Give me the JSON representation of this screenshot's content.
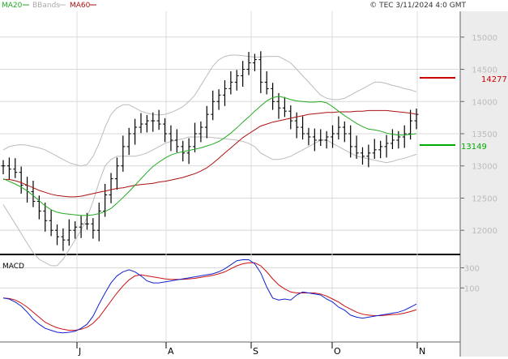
{
  "legend": {
    "ma20": {
      "label": "MA20",
      "color": "#22aa22"
    },
    "bbands": {
      "label": "BBands",
      "color": "#bbbbbb"
    },
    "ma60": {
      "label": "MA60",
      "color": "#aa1111"
    }
  },
  "copyright": "© TEC 3/11/2024 4:0 GMT",
  "macd_label": "MACD",
  "price_marker_high": {
    "value": "14277",
    "color": "#cc0000"
  },
  "price_marker_low": {
    "value": "13149",
    "color": "#00aa00"
  },
  "chart_data": [
    {
      "type": "ohlc",
      "panel": "price",
      "x_tick_labels": [
        "J",
        "A",
        "S",
        "O",
        "N"
      ],
      "y_ticks": [
        12000,
        12500,
        13000,
        13500,
        14000,
        14500,
        15000
      ],
      "y_tick_labels": [
        "12000",
        "12500",
        "13000",
        "13500",
        "14000",
        "14500",
        "15000"
      ],
      "ylim": [
        11650,
        15400
      ],
      "grid": true,
      "series": [
        {
          "name": "MA20",
          "values": [
            12800,
            12760,
            12720,
            12670,
            12610,
            12540,
            12460,
            12380,
            12320,
            12280,
            12260,
            12250,
            12240,
            12230,
            12230,
            12240,
            12260,
            12290,
            12340,
            12420,
            12510,
            12600,
            12700,
            12800,
            12900,
            12990,
            13060,
            13120,
            13170,
            13200,
            13220,
            13240,
            13260,
            13280,
            13310,
            13340,
            13380,
            13440,
            13510,
            13590,
            13680,
            13760,
            13850,
            13930,
            14010,
            14060,
            14080,
            14060,
            14030,
            14010,
            14000,
            13990,
            13990,
            14000,
            13980,
            13920,
            13850,
            13780,
            13720,
            13660,
            13610,
            13570,
            13560,
            13540,
            13510,
            13490,
            13480,
            13480,
            13490,
            13500
          ]
        },
        {
          "name": "MA60",
          "values": [
            12790,
            12790,
            12770,
            12740,
            12700,
            12660,
            12620,
            12590,
            12560,
            12540,
            12530,
            12520,
            12520,
            12530,
            12550,
            12570,
            12590,
            12610,
            12630,
            12650,
            12660,
            12680,
            12700,
            12710,
            12720,
            12730,
            12750,
            12760,
            12780,
            12800,
            12820,
            12850,
            12880,
            12920,
            12970,
            13040,
            13120,
            13200,
            13280,
            13360,
            13440,
            13500,
            13560,
            13620,
            13650,
            13680,
            13700,
            13720,
            13740,
            13760,
            13780,
            13800,
            13810,
            13820,
            13830,
            13830,
            13840,
            13840,
            13840,
            13850,
            13850,
            13860,
            13860,
            13860,
            13860,
            13850,
            13840,
            13830,
            13820,
            13800
          ]
        },
        {
          "name": "BB Upper",
          "values": [
            13250,
            13300,
            13320,
            13330,
            13320,
            13300,
            13280,
            13250,
            13200,
            13150,
            13100,
            13050,
            13020,
            13000,
            13020,
            13150,
            13350,
            13600,
            13800,
            13900,
            13950,
            13950,
            13900,
            13850,
            13820,
            13800,
            13790,
            13800,
            13830,
            13870,
            13920,
            14000,
            14100,
            14250,
            14400,
            14550,
            14650,
            14700,
            14720,
            14720,
            14710,
            14700,
            14690,
            14690,
            14700,
            14700,
            14700,
            14650,
            14600,
            14500,
            14400,
            14300,
            14200,
            14100,
            14050,
            14030,
            14030,
            14050,
            14100,
            14150,
            14200,
            14250,
            14300,
            14300,
            14280,
            14250,
            14230,
            14200,
            14180,
            14150
          ]
        },
        {
          "name": "BB Lower",
          "values": [
            12400,
            12250,
            12100,
            11950,
            11800,
            11650,
            11550,
            11500,
            11450,
            11450,
            11550,
            11700,
            11850,
            12000,
            12200,
            12450,
            12750,
            13000,
            13100,
            13150,
            13150,
            13150,
            13150,
            13170,
            13200,
            13250,
            13300,
            13350,
            13380,
            13400,
            13420,
            13450,
            13450,
            13450,
            13450,
            13440,
            13430,
            13420,
            13410,
            13400,
            13380,
            13350,
            13300,
            13200,
            13150,
            13100,
            13100,
            13120,
            13150,
            13200,
            13250,
            13300,
            13350,
            13400,
            13400,
            13350,
            13300,
            13250,
            13200,
            13150,
            13130,
            13110,
            13090,
            13070,
            13050,
            13070,
            13100,
            13120,
            13150,
            13180
          ]
        },
        {
          "name": "Close",
          "values": [
            13000,
            12950,
            12900,
            12700,
            12600,
            12450,
            12300,
            12150,
            12000,
            11900,
            11850,
            12000,
            12050,
            12100,
            12100,
            12000,
            12300,
            12550,
            12800,
            13000,
            13300,
            13500,
            13600,
            13650,
            13700,
            13700,
            13650,
            13500,
            13400,
            13300,
            13200,
            13300,
            13500,
            13600,
            13800,
            14000,
            14100,
            14200,
            14300,
            14400,
            14500,
            14600,
            14650,
            14300,
            14200,
            14000,
            13900,
            13850,
            13700,
            13600,
            13500,
            13450,
            13400,
            13400,
            13450,
            13500,
            13600,
            13500,
            13300,
            13200,
            13150,
            13200,
            13250,
            13300,
            13350,
            13400,
            13450,
            13500,
            13700,
            13800
          ]
        }
      ]
    },
    {
      "type": "line",
      "panel": "macd",
      "y_ticks": [
        100,
        300
      ],
      "y_tick_labels": [
        "100",
        "300"
      ],
      "ylim": [
        -420,
        400
      ],
      "series": [
        {
          "name": "MACD",
          "values": [
            0,
            -10,
            -40,
            -80,
            -140,
            -210,
            -260,
            -300,
            -320,
            -340,
            -345,
            -340,
            -330,
            -300,
            -260,
            -180,
            -60,
            50,
            150,
            220,
            260,
            280,
            260,
            220,
            170,
            150,
            150,
            160,
            170,
            180,
            190,
            200,
            210,
            220,
            230,
            240,
            260,
            290,
            330,
            370,
            380,
            380,
            340,
            250,
            110,
            0,
            -20,
            -10,
            -20,
            30,
            60,
            50,
            40,
            30,
            -10,
            -40,
            -90,
            -120,
            -170,
            -190,
            -200,
            -190,
            -180,
            -170,
            -160,
            -150,
            -140,
            -120,
            -90,
            -60
          ]
        },
        {
          "name": "Signal",
          "values": [
            0,
            -5,
            -20,
            -50,
            -90,
            -140,
            -190,
            -240,
            -270,
            -295,
            -310,
            -320,
            -320,
            -310,
            -290,
            -250,
            -190,
            -110,
            -30,
            50,
            120,
            180,
            220,
            230,
            220,
            210,
            200,
            190,
            185,
            185,
            185,
            190,
            195,
            205,
            215,
            225,
            240,
            260,
            290,
            320,
            340,
            350,
            350,
            320,
            260,
            190,
            130,
            90,
            60,
            50,
            50,
            50,
            50,
            40,
            20,
            -10,
            -40,
            -80,
            -110,
            -140,
            -160,
            -170,
            -175,
            -175,
            -170,
            -165,
            -160,
            -150,
            -135,
            -115
          ]
        }
      ]
    }
  ]
}
